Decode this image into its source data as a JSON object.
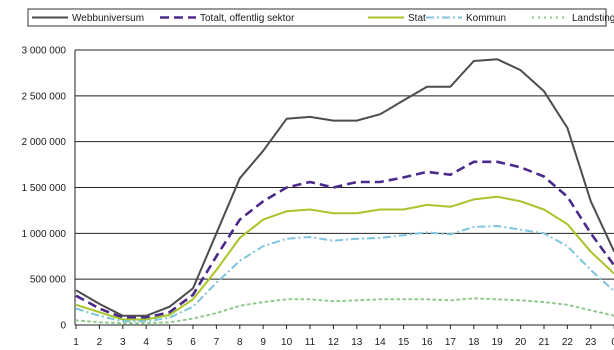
{
  "chart_data": {
    "type": "line",
    "x": [
      1,
      2,
      3,
      4,
      5,
      6,
      7,
      8,
      9,
      10,
      11,
      12,
      13,
      14,
      15,
      16,
      17,
      18,
      19,
      20,
      21,
      22,
      23,
      24
    ],
    "x_tick_labels": [
      "1",
      "2",
      "3",
      "4",
      "5",
      "6",
      "7",
      "8",
      "9",
      "10",
      "11",
      "12",
      "13",
      "14",
      "15",
      "16",
      "17",
      "18",
      "19",
      "20",
      "21",
      "22",
      "23",
      "0"
    ],
    "ylim": [
      0,
      3000000
    ],
    "y_ticks": [
      0,
      500000,
      1000000,
      1500000,
      2000000,
      2500000,
      3000000
    ],
    "y_tick_labels": [
      "0",
      "500 000",
      "1 000 000",
      "1 500 000",
      "2 000 000",
      "2 500 000",
      "3 000 000"
    ],
    "grid": "horizontal",
    "legend_position": "top",
    "series": [
      {
        "name": "Webbuniversum",
        "color": "#4d4d4d",
        "style": "solid",
        "values": [
          380000,
          230000,
          100000,
          100000,
          200000,
          400000,
          1000000,
          1600000,
          1900000,
          2250000,
          2270000,
          2230000,
          2230000,
          2300000,
          2450000,
          2600000,
          2600000,
          2880000,
          2900000,
          2780000,
          2550000,
          2150000,
          1350000,
          800000
        ]
      },
      {
        "name": "Totalt, offentlig sektor",
        "color": "#4b2a8c",
        "style": "dashed",
        "values": [
          320000,
          180000,
          80000,
          80000,
          140000,
          330000,
          750000,
          1150000,
          1350000,
          1500000,
          1560000,
          1500000,
          1560000,
          1560000,
          1610000,
          1670000,
          1640000,
          1780000,
          1780000,
          1720000,
          1620000,
          1400000,
          1000000,
          650000
        ]
      },
      {
        "name": "Stat",
        "color": "#a7c42a",
        "style": "solid",
        "values": [
          220000,
          140000,
          60000,
          60000,
          110000,
          280000,
          600000,
          950000,
          1150000,
          1240000,
          1260000,
          1220000,
          1220000,
          1260000,
          1260000,
          1310000,
          1290000,
          1370000,
          1400000,
          1350000,
          1260000,
          1100000,
          800000,
          560000
        ]
      },
      {
        "name": "Kommun",
        "color": "#7fc4de",
        "style": "dashdot",
        "values": [
          180000,
          100000,
          40000,
          40000,
          80000,
          200000,
          460000,
          700000,
          860000,
          940000,
          960000,
          920000,
          940000,
          950000,
          980000,
          1010000,
          990000,
          1070000,
          1080000,
          1040000,
          1000000,
          860000,
          600000,
          370000
        ]
      },
      {
        "name": "Landsting",
        "color": "#8fc98b",
        "style": "dotted",
        "values": [
          50000,
          30000,
          20000,
          20000,
          30000,
          70000,
          130000,
          210000,
          250000,
          280000,
          280000,
          260000,
          270000,
          280000,
          280000,
          280000,
          270000,
          290000,
          280000,
          270000,
          250000,
          220000,
          160000,
          100000
        ]
      }
    ]
  }
}
